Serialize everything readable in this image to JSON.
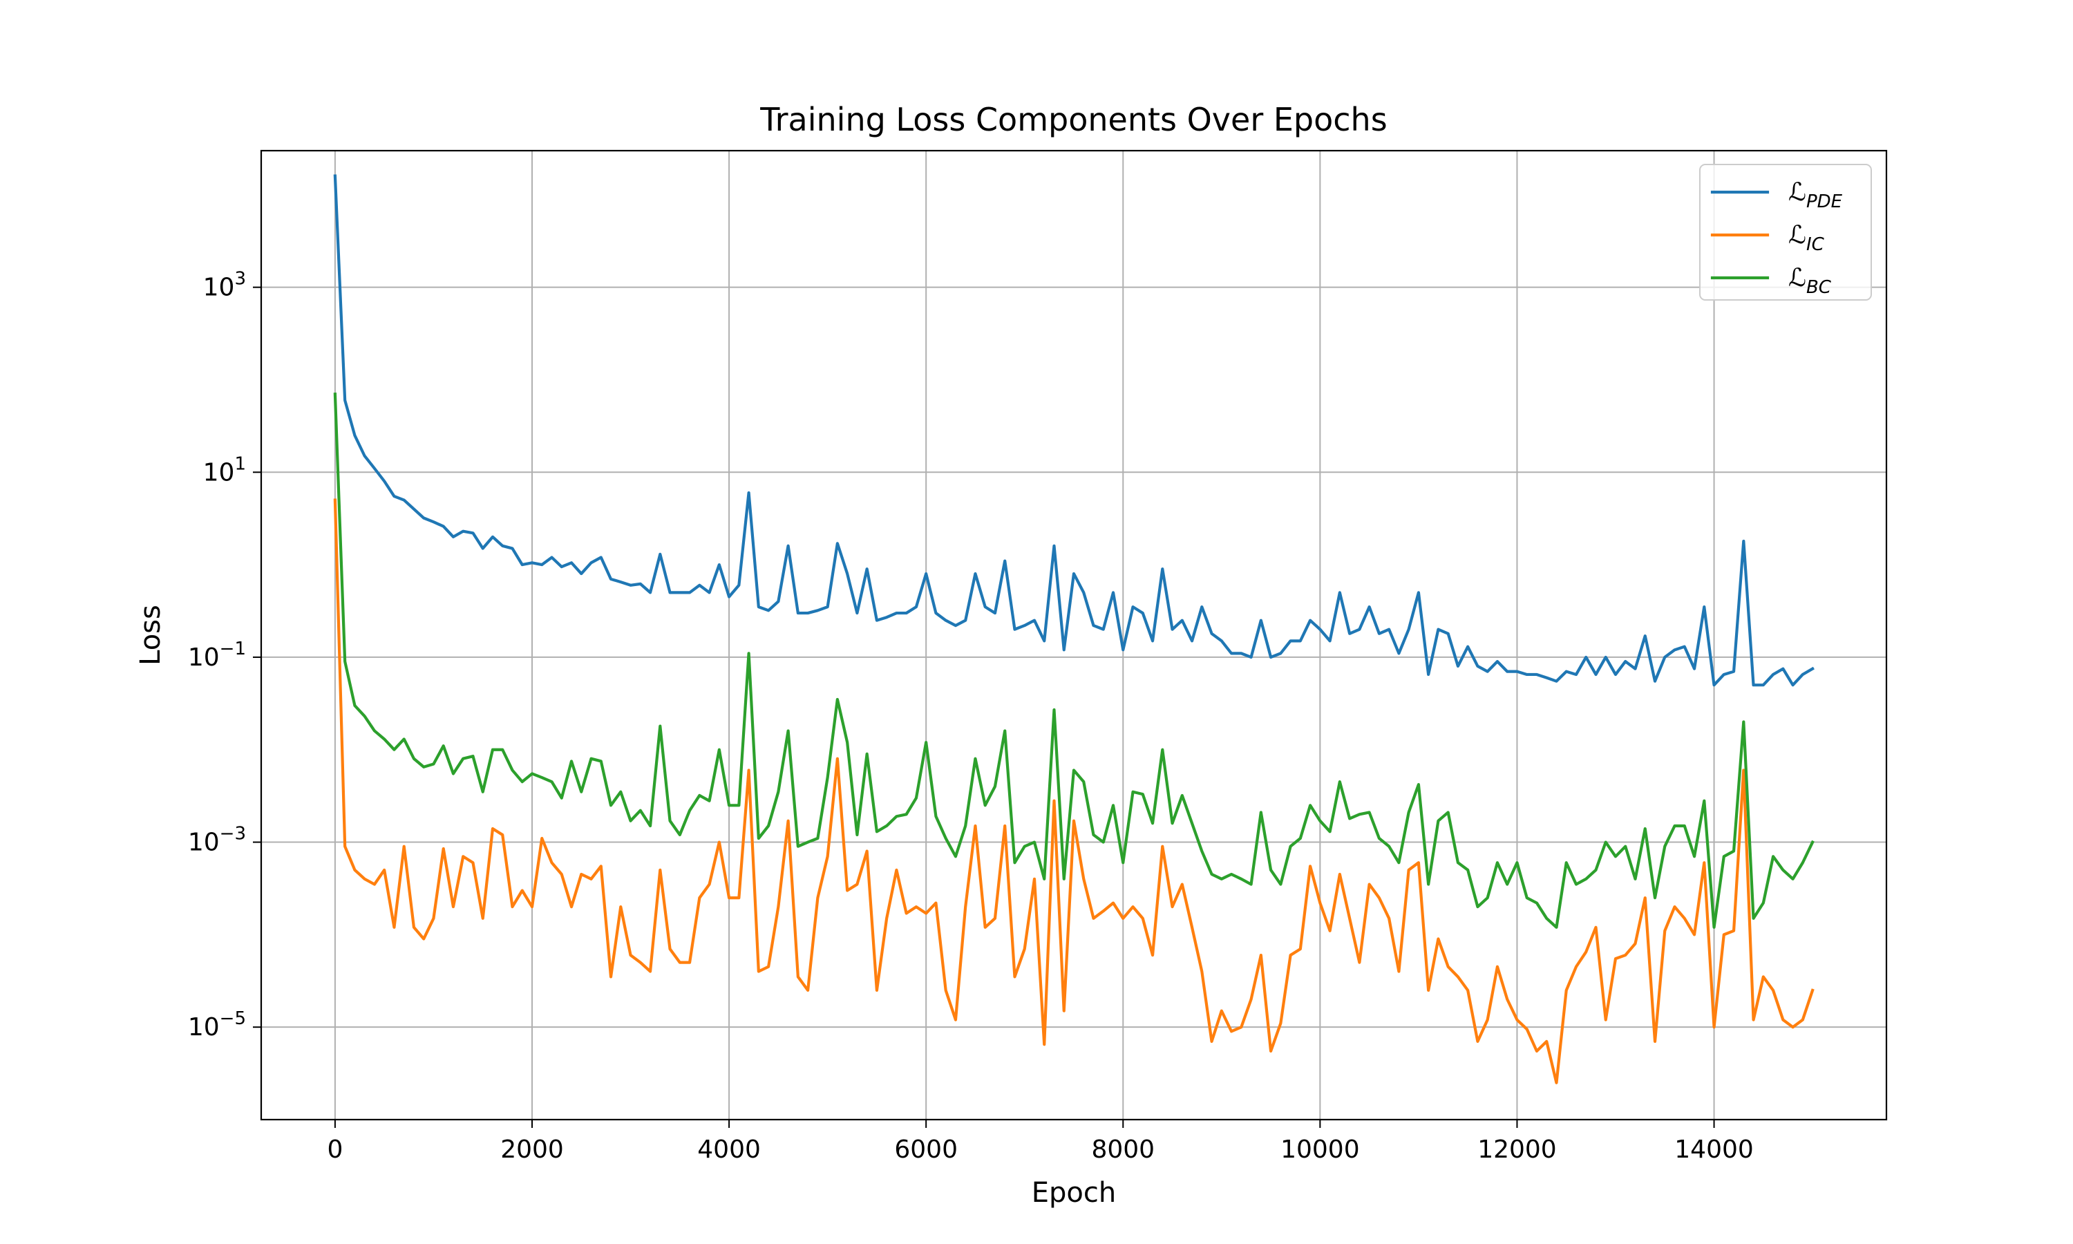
{
  "chart_data": {
    "type": "line",
    "title": "Training Loss Components Over Epochs",
    "xlabel": "Epoch",
    "ylabel": "Loss",
    "xlim": [
      -750,
      15750
    ],
    "ylim": [
      1e-06,
      30000
    ],
    "yscale": "log",
    "xticks": [
      0,
      2000,
      4000,
      6000,
      8000,
      10000,
      12000,
      14000
    ],
    "xtick_labels": [
      "0",
      "2000",
      "4000",
      "6000",
      "8000",
      "10000",
      "12000",
      "14000"
    ],
    "yticks": [
      {
        "value": 1000,
        "base": "10",
        "exp": "3"
      },
      {
        "value": 10,
        "base": "10",
        "exp": "1"
      },
      {
        "value": 0.1,
        "base": "10",
        "exp": "−1"
      },
      {
        "value": 0.001,
        "base": "10",
        "exp": "−3"
      },
      {
        "value": 1e-05,
        "base": "10",
        "exp": "−5"
      }
    ],
    "grid": true,
    "legend_position": "top-right",
    "x": [
      0,
      100,
      200,
      300,
      400,
      500,
      600,
      700,
      800,
      900,
      1000,
      1100,
      1200,
      1300,
      1400,
      1500,
      1600,
      1700,
      1800,
      1900,
      2000,
      2100,
      2200,
      2300,
      2400,
      2500,
      2600,
      2700,
      2800,
      2900,
      3000,
      3100,
      3200,
      3300,
      3400,
      3500,
      3600,
      3700,
      3800,
      3900,
      4000,
      4100,
      4200,
      4300,
      4400,
      4500,
      4600,
      4700,
      4800,
      4900,
      5000,
      5100,
      5200,
      5300,
      5400,
      5500,
      5600,
      5700,
      5800,
      5900,
      6000,
      6100,
      6200,
      6300,
      6400,
      6500,
      6600,
      6700,
      6800,
      6900,
      7000,
      7100,
      7200,
      7300,
      7400,
      7500,
      7600,
      7700,
      7800,
      7900,
      8000,
      8100,
      8200,
      8300,
      8400,
      8500,
      8600,
      8700,
      8800,
      8900,
      9000,
      9100,
      9200,
      9300,
      9400,
      9500,
      9600,
      9700,
      9800,
      9900,
      10000,
      10100,
      10200,
      10300,
      10400,
      10500,
      10600,
      10700,
      10800,
      10900,
      11000,
      11100,
      11200,
      11300,
      11400,
      11500,
      11600,
      11700,
      11800,
      11900,
      12000,
      12100,
      12200,
      12300,
      12400,
      12500,
      12600,
      12700,
      12800,
      12900,
      13000,
      13100,
      13200,
      13300,
      13400,
      13500,
      13600,
      13700,
      13800,
      13900,
      14000,
      14100,
      14200,
      14300,
      14400,
      14500,
      14600,
      14700,
      14800,
      14900,
      15000
    ],
    "series": [
      {
        "name_main": "ℒ",
        "name_sub": "PDE",
        "color": "#1f77b4",
        "values": [
          16000,
          60,
          25,
          15,
          11,
          8,
          5.5,
          5,
          4,
          3.2,
          2.9,
          2.6,
          2.0,
          2.3,
          2.2,
          1.5,
          2.0,
          1.6,
          1.5,
          1.0,
          1.05,
          1.0,
          1.2,
          0.95,
          1.05,
          0.8,
          1.05,
          1.2,
          0.7,
          0.65,
          0.6,
          0.62,
          0.5,
          1.3,
          0.5,
          0.5,
          0.5,
          0.6,
          0.5,
          1.0,
          0.45,
          0.6,
          6.0,
          0.35,
          0.32,
          0.4,
          1.6,
          0.3,
          0.3,
          0.32,
          0.35,
          1.7,
          0.8,
          0.3,
          0.9,
          0.25,
          0.27,
          0.3,
          0.3,
          0.35,
          0.8,
          0.3,
          0.25,
          0.22,
          0.25,
          0.8,
          0.35,
          0.3,
          1.1,
          0.2,
          0.22,
          0.25,
          0.15,
          1.6,
          0.12,
          0.8,
          0.5,
          0.22,
          0.2,
          0.5,
          0.12,
          0.35,
          0.3,
          0.15,
          0.9,
          0.2,
          0.25,
          0.15,
          0.35,
          0.18,
          0.15,
          0.11,
          0.11,
          0.1,
          0.25,
          0.1,
          0.11,
          0.15,
          0.15,
          0.25,
          0.2,
          0.15,
          0.5,
          0.18,
          0.2,
          0.35,
          0.18,
          0.2,
          0.11,
          0.2,
          0.5,
          0.065,
          0.2,
          0.18,
          0.08,
          0.13,
          0.08,
          0.07,
          0.09,
          0.07,
          0.07,
          0.065,
          0.065,
          0.06,
          0.055,
          0.07,
          0.065,
          0.1,
          0.065,
          0.1,
          0.065,
          0.09,
          0.075,
          0.17,
          0.055,
          0.1,
          0.12,
          0.13,
          0.075,
          0.35,
          0.05,
          0.065,
          0.07,
          1.8,
          0.05,
          0.05,
          0.065,
          0.075,
          0.05,
          0.065,
          0.075
        ]
      },
      {
        "name_main": "ℒ",
        "name_sub": "IC",
        "color": "#ff7f0e",
        "values": [
          5,
          0.0009,
          0.0005,
          0.0004,
          0.00035,
          0.0005,
          0.00012,
          0.0009,
          0.00012,
          9e-05,
          0.00015,
          0.00085,
          0.0002,
          0.0007,
          0.0006,
          0.00015,
          0.0014,
          0.0012,
          0.0002,
          0.0003,
          0.0002,
          0.0011,
          0.0006,
          0.00045,
          0.0002,
          0.00045,
          0.0004,
          0.00055,
          3.5e-05,
          0.0002,
          6e-05,
          5e-05,
          4e-05,
          0.0005,
          7e-05,
          5e-05,
          5e-05,
          0.00025,
          0.00035,
          0.001,
          0.00025,
          0.00025,
          0.006,
          4e-05,
          4.5e-05,
          0.0002,
          0.0017,
          3.5e-05,
          2.5e-05,
          0.00025,
          0.0007,
          0.008,
          0.0003,
          0.00035,
          0.0008,
          2.5e-05,
          0.00015,
          0.0005,
          0.00017,
          0.0002,
          0.00017,
          0.00022,
          2.5e-05,
          1.2e-05,
          0.0002,
          0.0015,
          0.00012,
          0.00015,
          0.0015,
          3.5e-05,
          7e-05,
          0.0004,
          6.5e-06,
          0.0028,
          1.5e-05,
          0.0017,
          0.0004,
          0.00015,
          0.00018,
          0.00022,
          0.00015,
          0.0002,
          0.00015,
          6e-05,
          0.0009,
          0.0002,
          0.00035,
          0.00012,
          4e-05,
          7e-06,
          1.5e-05,
          9e-06,
          1e-05,
          2e-05,
          6e-05,
          5.5e-06,
          1.1e-05,
          6e-05,
          7e-05,
          0.00055,
          0.00022,
          0.00011,
          0.00045,
          0.00015,
          5e-05,
          0.00035,
          0.00025,
          0.00015,
          4e-05,
          0.0005,
          0.0006,
          2.5e-05,
          9e-05,
          4.5e-05,
          3.5e-05,
          2.5e-05,
          7e-06,
          1.2e-05,
          4.5e-05,
          2e-05,
          1.2e-05,
          9.5e-06,
          5.5e-06,
          7e-06,
          2.5e-06,
          2.5e-05,
          4.5e-05,
          6.5e-05,
          0.00012,
          1.2e-05,
          5.5e-05,
          6e-05,
          8e-05,
          0.00025,
          7e-06,
          0.00011,
          0.0002,
          0.00015,
          0.0001,
          0.0006,
          1e-05,
          0.0001,
          0.00011,
          0.006,
          1.2e-05,
          3.5e-05,
          2.5e-05,
          1.2e-05,
          1e-05,
          1.2e-05,
          2.5e-05
        ]
      },
      {
        "name_main": "ℒ",
        "name_sub": "BC",
        "color": "#2ca02c",
        "values": [
          70,
          0.09,
          0.03,
          0.023,
          0.016,
          0.013,
          0.01,
          0.013,
          0.008,
          0.0065,
          0.007,
          0.011,
          0.0055,
          0.008,
          0.0085,
          0.0035,
          0.01,
          0.01,
          0.006,
          0.0045,
          0.0055,
          0.005,
          0.0045,
          0.003,
          0.0075,
          0.0035,
          0.008,
          0.0075,
          0.0025,
          0.0035,
          0.0017,
          0.0022,
          0.0015,
          0.018,
          0.0017,
          0.0012,
          0.0022,
          0.0032,
          0.0028,
          0.01,
          0.0025,
          0.0025,
          0.11,
          0.0011,
          0.0015,
          0.0035,
          0.016,
          0.0009,
          0.001,
          0.0011,
          0.005,
          0.035,
          0.012,
          0.0012,
          0.009,
          0.0013,
          0.0015,
          0.0019,
          0.002,
          0.003,
          0.012,
          0.0019,
          0.0011,
          0.0007,
          0.0015,
          0.008,
          0.0025,
          0.004,
          0.016,
          0.0006,
          0.0009,
          0.001,
          0.0004,
          0.027,
          0.0004,
          0.006,
          0.0045,
          0.0012,
          0.001,
          0.0025,
          0.0006,
          0.0035,
          0.0033,
          0.0016,
          0.01,
          0.0016,
          0.0032,
          0.0016,
          0.0008,
          0.00045,
          0.0004,
          0.00045,
          0.0004,
          0.00035,
          0.0021,
          0.0005,
          0.00035,
          0.0009,
          0.0011,
          0.0025,
          0.0017,
          0.0013,
          0.0045,
          0.0018,
          0.002,
          0.0021,
          0.0011,
          0.0009,
          0.0006,
          0.0021,
          0.0042,
          0.00035,
          0.0017,
          0.0021,
          0.0006,
          0.0005,
          0.0002,
          0.00025,
          0.0006,
          0.00035,
          0.0006,
          0.00025,
          0.00022,
          0.00015,
          0.00012,
          0.0006,
          0.00035,
          0.0004,
          0.0005,
          0.001,
          0.0007,
          0.0009,
          0.0004,
          0.0014,
          0.00025,
          0.0009,
          0.0015,
          0.0015,
          0.0007,
          0.0028,
          0.00012,
          0.0007,
          0.0008,
          0.02,
          0.00015,
          0.00022,
          0.0007,
          0.0005,
          0.0004,
          0.0006,
          0.001
        ]
      }
    ]
  }
}
